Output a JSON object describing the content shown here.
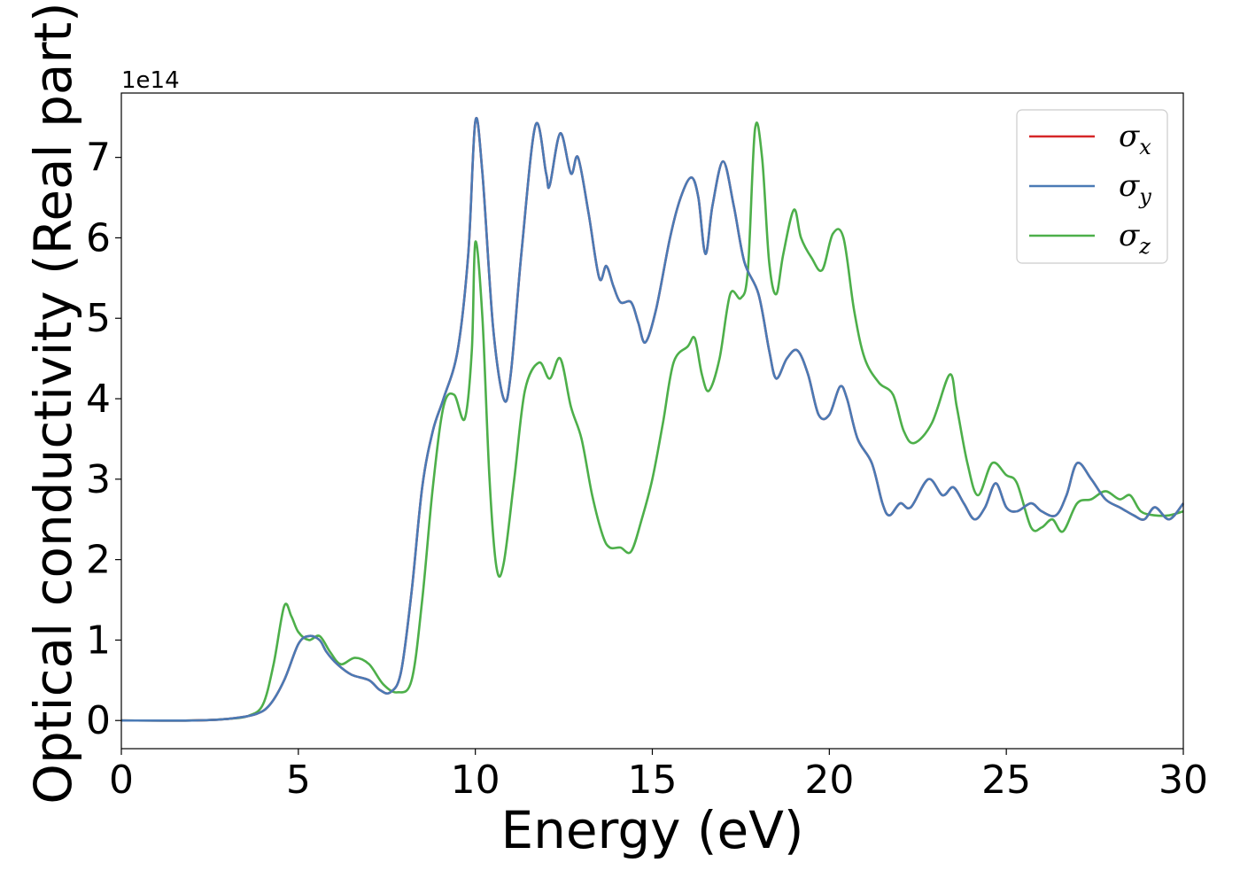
{
  "chart_data": {
    "type": "line",
    "xlabel": "Energy (eV)",
    "ylabel": "Optical conductivity (Real part)",
    "y_offset_text": "1e14",
    "xlim": [
      0,
      30
    ],
    "ylim": [
      -0.35,
      7.8
    ],
    "y_scale": "×1e14",
    "xticks": [
      0,
      5,
      10,
      15,
      20,
      25,
      30
    ],
    "yticks": [
      0,
      1,
      2,
      3,
      4,
      5,
      6,
      7
    ],
    "grid": false,
    "legend": {
      "position": "top-right"
    },
    "series": [
      {
        "name": "σx",
        "symbol": "σ",
        "sub": "x",
        "color": "#d62728",
        "points": [
          [
            0,
            0
          ],
          [
            2,
            0
          ],
          [
            3,
            0.02
          ],
          [
            3.8,
            0.08
          ],
          [
            4.2,
            0.2
          ],
          [
            4.6,
            0.5
          ],
          [
            5.0,
            0.95
          ],
          [
            5.3,
            1.05
          ],
          [
            5.6,
            1.0
          ],
          [
            5.8,
            0.85
          ],
          [
            6.1,
            0.7
          ],
          [
            6.5,
            0.57
          ],
          [
            7.0,
            0.5
          ],
          [
            7.3,
            0.38
          ],
          [
            7.6,
            0.35
          ],
          [
            7.9,
            0.6
          ],
          [
            8.2,
            1.6
          ],
          [
            8.5,
            2.9
          ],
          [
            8.8,
            3.6
          ],
          [
            9.1,
            4.0
          ],
          [
            9.5,
            4.6
          ],
          [
            9.8,
            5.8
          ],
          [
            10.0,
            7.45
          ],
          [
            10.2,
            6.8
          ],
          [
            10.5,
            4.9
          ],
          [
            10.8,
            4.0
          ],
          [
            11.0,
            4.3
          ],
          [
            11.3,
            5.8
          ],
          [
            11.7,
            7.4
          ],
          [
            12.0,
            6.8
          ],
          [
            12.1,
            6.65
          ],
          [
            12.4,
            7.3
          ],
          [
            12.7,
            6.8
          ],
          [
            12.9,
            7.0
          ],
          [
            13.2,
            6.3
          ],
          [
            13.5,
            5.5
          ],
          [
            13.7,
            5.65
          ],
          [
            13.9,
            5.4
          ],
          [
            14.1,
            5.2
          ],
          [
            14.4,
            5.2
          ],
          [
            14.6,
            4.95
          ],
          [
            14.8,
            4.7
          ],
          [
            15.1,
            5.1
          ],
          [
            15.5,
            6.0
          ],
          [
            15.8,
            6.5
          ],
          [
            16.1,
            6.75
          ],
          [
            16.3,
            6.5
          ],
          [
            16.5,
            5.8
          ],
          [
            16.7,
            6.4
          ],
          [
            17.0,
            6.95
          ],
          [
            17.3,
            6.4
          ],
          [
            17.6,
            5.7
          ],
          [
            18.0,
            5.3
          ],
          [
            18.3,
            4.6
          ],
          [
            18.5,
            4.25
          ],
          [
            18.8,
            4.5
          ],
          [
            19.1,
            4.6
          ],
          [
            19.4,
            4.3
          ],
          [
            19.7,
            3.8
          ],
          [
            20.0,
            3.8
          ],
          [
            20.3,
            4.15
          ],
          [
            20.5,
            4.0
          ],
          [
            20.8,
            3.5
          ],
          [
            21.2,
            3.2
          ],
          [
            21.5,
            2.7
          ],
          [
            21.7,
            2.55
          ],
          [
            22.0,
            2.7
          ],
          [
            22.3,
            2.65
          ],
          [
            22.8,
            3.0
          ],
          [
            23.2,
            2.8
          ],
          [
            23.5,
            2.9
          ],
          [
            23.8,
            2.7
          ],
          [
            24.1,
            2.5
          ],
          [
            24.4,
            2.65
          ],
          [
            24.7,
            2.95
          ],
          [
            25.0,
            2.65
          ],
          [
            25.3,
            2.6
          ],
          [
            25.7,
            2.7
          ],
          [
            26.0,
            2.6
          ],
          [
            26.4,
            2.55
          ],
          [
            26.7,
            2.8
          ],
          [
            27.0,
            3.2
          ],
          [
            27.4,
            3.0
          ],
          [
            27.8,
            2.75
          ],
          [
            28.2,
            2.65
          ],
          [
            28.6,
            2.55
          ],
          [
            28.9,
            2.5
          ],
          [
            29.2,
            2.65
          ],
          [
            29.6,
            2.5
          ],
          [
            30.0,
            2.7
          ]
        ]
      },
      {
        "name": "σy",
        "symbol": "σ",
        "sub": "y",
        "color": "#4a7ab5",
        "points": [
          [
            0,
            0
          ],
          [
            2,
            0
          ],
          [
            3,
            0.02
          ],
          [
            3.8,
            0.08
          ],
          [
            4.2,
            0.2
          ],
          [
            4.6,
            0.5
          ],
          [
            5.0,
            0.95
          ],
          [
            5.3,
            1.05
          ],
          [
            5.6,
            1.0
          ],
          [
            5.8,
            0.85
          ],
          [
            6.1,
            0.7
          ],
          [
            6.5,
            0.57
          ],
          [
            7.0,
            0.5
          ],
          [
            7.3,
            0.38
          ],
          [
            7.6,
            0.35
          ],
          [
            7.9,
            0.6
          ],
          [
            8.2,
            1.6
          ],
          [
            8.5,
            2.9
          ],
          [
            8.8,
            3.6
          ],
          [
            9.1,
            4.0
          ],
          [
            9.5,
            4.6
          ],
          [
            9.8,
            5.8
          ],
          [
            10.0,
            7.45
          ],
          [
            10.2,
            6.8
          ],
          [
            10.5,
            4.9
          ],
          [
            10.8,
            4.0
          ],
          [
            11.0,
            4.3
          ],
          [
            11.3,
            5.8
          ],
          [
            11.7,
            7.4
          ],
          [
            12.0,
            6.8
          ],
          [
            12.1,
            6.65
          ],
          [
            12.4,
            7.3
          ],
          [
            12.7,
            6.8
          ],
          [
            12.9,
            7.0
          ],
          [
            13.2,
            6.3
          ],
          [
            13.5,
            5.5
          ],
          [
            13.7,
            5.65
          ],
          [
            13.9,
            5.4
          ],
          [
            14.1,
            5.2
          ],
          [
            14.4,
            5.2
          ],
          [
            14.6,
            4.95
          ],
          [
            14.8,
            4.7
          ],
          [
            15.1,
            5.1
          ],
          [
            15.5,
            6.0
          ],
          [
            15.8,
            6.5
          ],
          [
            16.1,
            6.75
          ],
          [
            16.3,
            6.5
          ],
          [
            16.5,
            5.8
          ],
          [
            16.7,
            6.4
          ],
          [
            17.0,
            6.95
          ],
          [
            17.3,
            6.4
          ],
          [
            17.6,
            5.7
          ],
          [
            18.0,
            5.3
          ],
          [
            18.3,
            4.6
          ],
          [
            18.5,
            4.25
          ],
          [
            18.8,
            4.5
          ],
          [
            19.1,
            4.6
          ],
          [
            19.4,
            4.3
          ],
          [
            19.7,
            3.8
          ],
          [
            20.0,
            3.8
          ],
          [
            20.3,
            4.15
          ],
          [
            20.5,
            4.0
          ],
          [
            20.8,
            3.5
          ],
          [
            21.2,
            3.2
          ],
          [
            21.5,
            2.7
          ],
          [
            21.7,
            2.55
          ],
          [
            22.0,
            2.7
          ],
          [
            22.3,
            2.65
          ],
          [
            22.8,
            3.0
          ],
          [
            23.2,
            2.8
          ],
          [
            23.5,
            2.9
          ],
          [
            23.8,
            2.7
          ],
          [
            24.1,
            2.5
          ],
          [
            24.4,
            2.65
          ],
          [
            24.7,
            2.95
          ],
          [
            25.0,
            2.65
          ],
          [
            25.3,
            2.6
          ],
          [
            25.7,
            2.7
          ],
          [
            26.0,
            2.6
          ],
          [
            26.4,
            2.55
          ],
          [
            26.7,
            2.8
          ],
          [
            27.0,
            3.2
          ],
          [
            27.4,
            3.0
          ],
          [
            27.8,
            2.75
          ],
          [
            28.2,
            2.65
          ],
          [
            28.6,
            2.55
          ],
          [
            28.9,
            2.5
          ],
          [
            29.2,
            2.65
          ],
          [
            29.6,
            2.5
          ],
          [
            30.0,
            2.7
          ]
        ]
      },
      {
        "name": "σz",
        "symbol": "σ",
        "sub": "z",
        "color": "#4daf4a",
        "points": [
          [
            0,
            0
          ],
          [
            2,
            0
          ],
          [
            3,
            0.02
          ],
          [
            3.6,
            0.06
          ],
          [
            4.0,
            0.2
          ],
          [
            4.3,
            0.7
          ],
          [
            4.6,
            1.42
          ],
          [
            4.8,
            1.3
          ],
          [
            5.0,
            1.1
          ],
          [
            5.3,
            1.0
          ],
          [
            5.6,
            1.05
          ],
          [
            5.9,
            0.85
          ],
          [
            6.2,
            0.7
          ],
          [
            6.6,
            0.78
          ],
          [
            7.0,
            0.7
          ],
          [
            7.4,
            0.45
          ],
          [
            7.8,
            0.35
          ],
          [
            8.2,
            0.5
          ],
          [
            8.5,
            1.5
          ],
          [
            8.8,
            2.9
          ],
          [
            9.1,
            3.9
          ],
          [
            9.4,
            4.05
          ],
          [
            9.7,
            3.75
          ],
          [
            9.9,
            4.6
          ],
          [
            10.0,
            5.95
          ],
          [
            10.2,
            5.0
          ],
          [
            10.4,
            3.0
          ],
          [
            10.6,
            1.9
          ],
          [
            10.8,
            1.95
          ],
          [
            11.1,
            3.0
          ],
          [
            11.4,
            4.1
          ],
          [
            11.8,
            4.45
          ],
          [
            12.1,
            4.25
          ],
          [
            12.4,
            4.5
          ],
          [
            12.7,
            3.9
          ],
          [
            13.0,
            3.5
          ],
          [
            13.3,
            2.8
          ],
          [
            13.6,
            2.3
          ],
          [
            13.8,
            2.15
          ],
          [
            14.1,
            2.15
          ],
          [
            14.4,
            2.1
          ],
          [
            14.7,
            2.5
          ],
          [
            15.0,
            3.0
          ],
          [
            15.3,
            3.7
          ],
          [
            15.6,
            4.45
          ],
          [
            16.0,
            4.65
          ],
          [
            16.2,
            4.75
          ],
          [
            16.4,
            4.3
          ],
          [
            16.6,
            4.1
          ],
          [
            16.9,
            4.5
          ],
          [
            17.2,
            5.3
          ],
          [
            17.5,
            5.25
          ],
          [
            17.7,
            5.6
          ],
          [
            17.9,
            7.35
          ],
          [
            18.1,
            7.0
          ],
          [
            18.3,
            5.7
          ],
          [
            18.5,
            5.3
          ],
          [
            18.7,
            5.8
          ],
          [
            19.0,
            6.35
          ],
          [
            19.2,
            6.0
          ],
          [
            19.5,
            5.75
          ],
          [
            19.8,
            5.6
          ],
          [
            20.1,
            6.05
          ],
          [
            20.4,
            6.0
          ],
          [
            20.7,
            5.1
          ],
          [
            21.0,
            4.5
          ],
          [
            21.4,
            4.2
          ],
          [
            21.8,
            4.05
          ],
          [
            22.1,
            3.6
          ],
          [
            22.4,
            3.45
          ],
          [
            22.9,
            3.7
          ],
          [
            23.4,
            4.3
          ],
          [
            23.6,
            3.9
          ],
          [
            23.9,
            3.2
          ],
          [
            24.2,
            2.8
          ],
          [
            24.6,
            3.2
          ],
          [
            25.0,
            3.05
          ],
          [
            25.3,
            2.95
          ],
          [
            25.7,
            2.4
          ],
          [
            26.0,
            2.4
          ],
          [
            26.3,
            2.5
          ],
          [
            26.6,
            2.35
          ],
          [
            27.0,
            2.7
          ],
          [
            27.4,
            2.75
          ],
          [
            27.8,
            2.85
          ],
          [
            28.2,
            2.75
          ],
          [
            28.5,
            2.8
          ],
          [
            28.8,
            2.6
          ],
          [
            29.2,
            2.55
          ],
          [
            29.6,
            2.55
          ],
          [
            30.0,
            2.6
          ]
        ]
      }
    ]
  }
}
